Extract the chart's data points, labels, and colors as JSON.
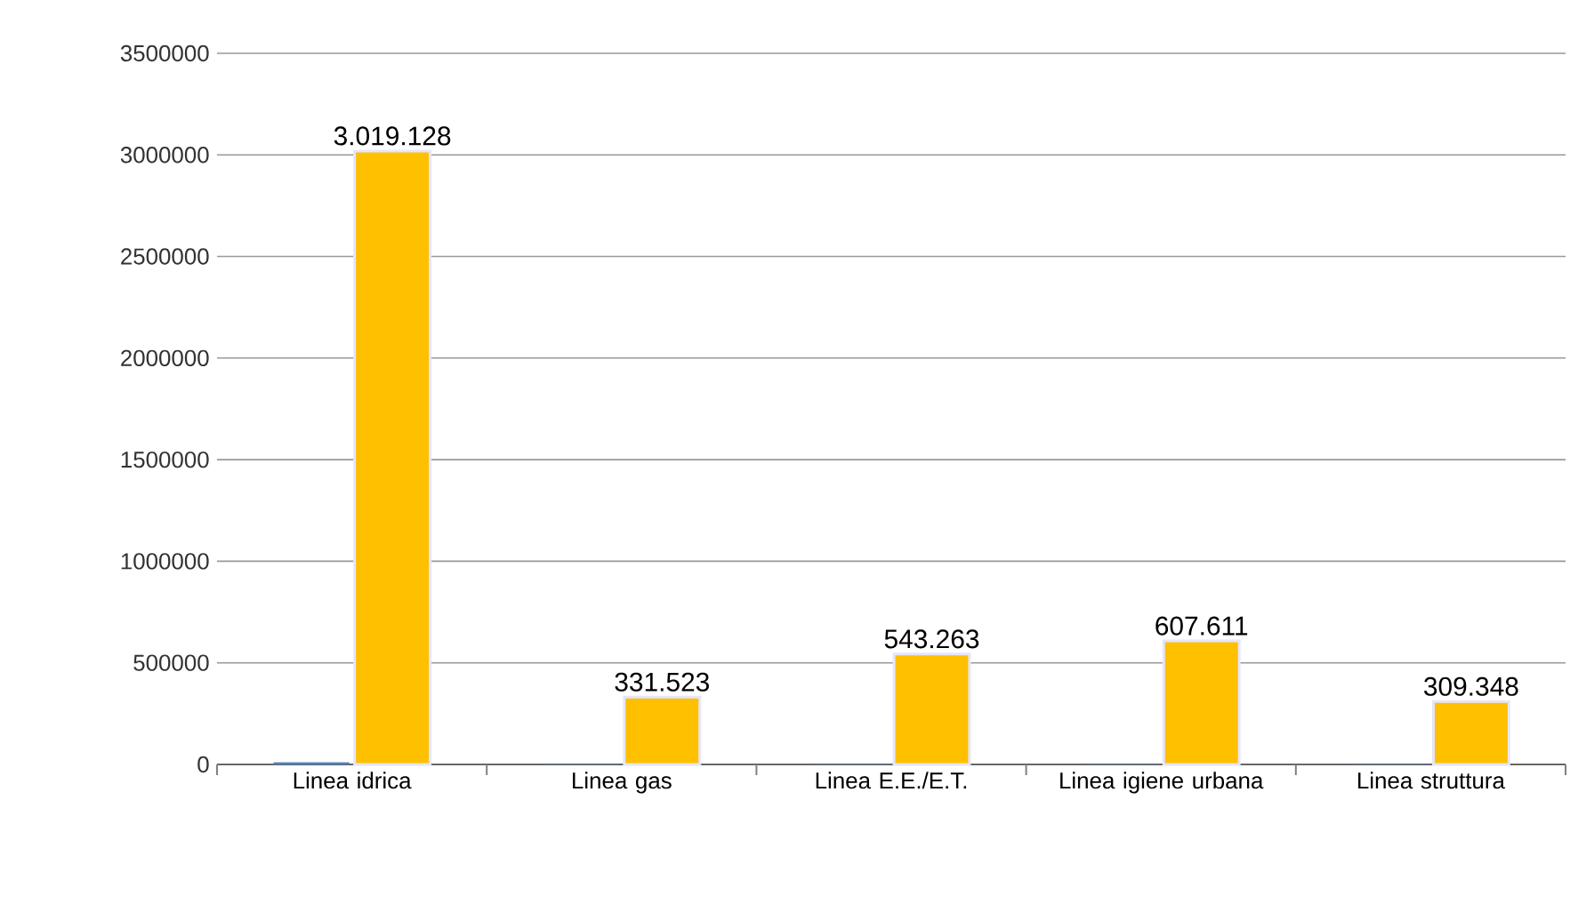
{
  "chart_data": {
    "type": "bar",
    "categories": [
      "Linea idrica",
      "Linea gas",
      "Linea E.E./E.T.",
      "Linea igiene urbana",
      "Linea struttura"
    ],
    "series": [
      {
        "color": "#4f81bd",
        "values": [
          10000,
          0,
          0,
          0,
          0
        ]
      },
      {
        "color": "#ffc000",
        "values": [
          3019128,
          331523,
          543263,
          607611,
          309348
        ],
        "value_labels": [
          "3.019.128",
          "331.523",
          "543.263",
          "607.611",
          "309.348"
        ]
      }
    ],
    "ylim": [
      0,
      3500000
    ],
    "yticks": [
      0,
      500000,
      1000000,
      1500000,
      2000000,
      2500000,
      3000000,
      3500000
    ],
    "grid": "y"
  }
}
